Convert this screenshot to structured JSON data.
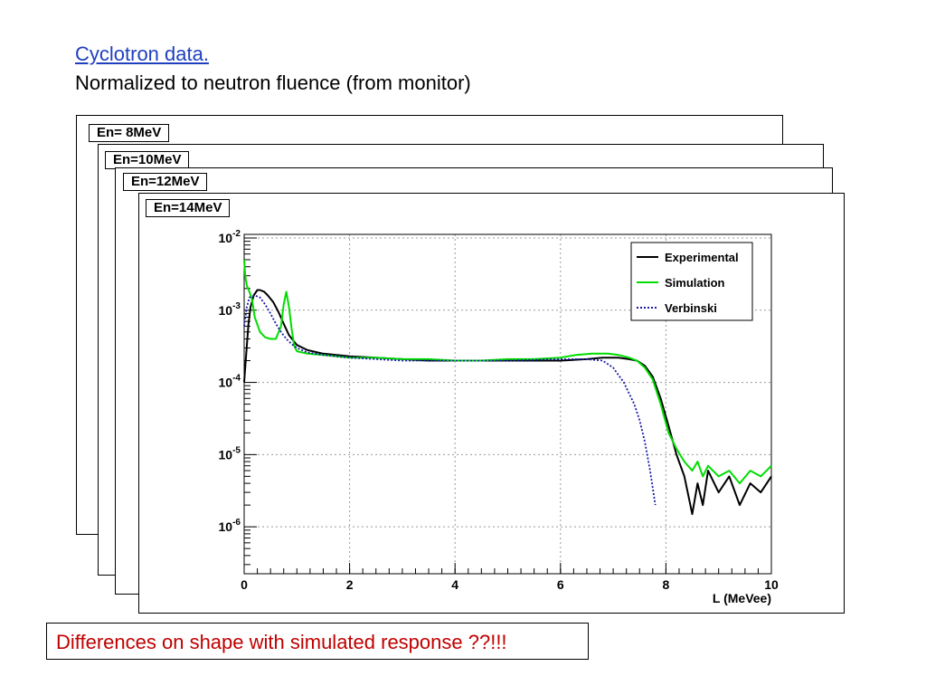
{
  "header": {
    "title_link": "Cyclotron data.",
    "subtitle": "Normalized to neutron fluence (from monitor)"
  },
  "pads": [
    {
      "label": "En= 8MeV"
    },
    {
      "label": "En=10MeV"
    },
    {
      "label": "En=12MeV"
    },
    {
      "label": "En=14MeV"
    }
  ],
  "note": "Differences on shape with simulated response ??!!!",
  "colors": {
    "experimental": "#000000",
    "simulation": "#00dd00",
    "verbinski": "#1a1aaa"
  },
  "chart_data": {
    "type": "line",
    "xlabel": "L (MeVee)",
    "ylabel": "",
    "xlim": [
      0,
      10
    ],
    "ylim_log10": [
      -6.65,
      -1.95
    ],
    "log_y": true,
    "grid": true,
    "legend_position": "top-right",
    "x_ticks": [
      "0",
      "2",
      "4",
      "6",
      "8",
      "10"
    ],
    "y_ticks": [
      {
        "exp": -2,
        "label": "10",
        "sup": "-2"
      },
      {
        "exp": -3,
        "label": "10",
        "sup": "-3"
      },
      {
        "exp": -4,
        "label": "10",
        "sup": "-4"
      },
      {
        "exp": -5,
        "label": "10",
        "sup": "-5"
      },
      {
        "exp": -6,
        "label": "10",
        "sup": "-6"
      }
    ],
    "series": [
      {
        "name": "Experimental",
        "style": "solid",
        "x": [
          0.0,
          0.04,
          0.08,
          0.12,
          0.18,
          0.25,
          0.3,
          0.38,
          0.45,
          0.55,
          0.65,
          0.75,
          0.85,
          1.0,
          1.2,
          1.5,
          2.0,
          2.5,
          3.0,
          3.5,
          4.0,
          4.5,
          5.0,
          5.5,
          6.0,
          6.5,
          6.8,
          7.1,
          7.3,
          7.45,
          7.6,
          7.75,
          7.9,
          8.05,
          8.2,
          8.35,
          8.5,
          8.6,
          8.7,
          8.8,
          9.0,
          9.2,
          9.4,
          9.6,
          9.8,
          10.0
        ],
        "y": [
          0.0001,
          0.00025,
          0.00063,
          0.0011,
          0.0016,
          0.0019,
          0.0019,
          0.0018,
          0.0016,
          0.0013,
          0.00095,
          0.00065,
          0.00045,
          0.00033,
          0.00028,
          0.00025,
          0.00023,
          0.00022,
          0.00021,
          0.0002,
          0.0002,
          0.0002,
          0.0002,
          0.0002,
          0.0002,
          0.00021,
          0.00022,
          0.00022,
          0.00021,
          0.0002,
          0.00017,
          0.00012,
          6e-05,
          2.5e-05,
          1e-05,
          5e-06,
          1.5e-06,
          4e-06,
          2e-06,
          6e-06,
          3e-06,
          5e-06,
          2e-06,
          4e-06,
          3e-06,
          5e-06
        ]
      },
      {
        "name": "Simulation",
        "style": "solid",
        "x": [
          0.0,
          0.02,
          0.05,
          0.1,
          0.15,
          0.2,
          0.3,
          0.4,
          0.5,
          0.6,
          0.7,
          0.75,
          0.8,
          0.85,
          0.9,
          0.95,
          1.0,
          1.2,
          1.5,
          2.0,
          2.5,
          3.0,
          3.5,
          4.0,
          4.5,
          5.0,
          5.5,
          6.0,
          6.3,
          6.6,
          6.9,
          7.1,
          7.3,
          7.45,
          7.6,
          7.75,
          7.9,
          8.05,
          8.2,
          8.35,
          8.5,
          8.6,
          8.7,
          8.8,
          9.0,
          9.2,
          9.4,
          9.6,
          9.8,
          10.0
        ],
        "y": [
          0.005,
          0.003,
          0.0022,
          0.0018,
          0.0014,
          0.0008,
          0.0005,
          0.00042,
          0.0004,
          0.0004,
          0.0006,
          0.0012,
          0.0018,
          0.0011,
          0.00055,
          0.00032,
          0.00027,
          0.00025,
          0.00024,
          0.00022,
          0.00022,
          0.00021,
          0.00021,
          0.0002,
          0.0002,
          0.00021,
          0.00021,
          0.00022,
          0.00024,
          0.00025,
          0.00025,
          0.00024,
          0.00022,
          0.0002,
          0.00016,
          0.00011,
          5e-05,
          2e-05,
          1.2e-05,
          8e-06,
          6e-06,
          8e-06,
          5e-06,
          7e-06,
          5e-06,
          6e-06,
          4e-06,
          6e-06,
          5e-06,
          7e-06
        ]
      },
      {
        "name": "Verbinski",
        "style": "dotted",
        "x": [
          0.0,
          0.05,
          0.1,
          0.2,
          0.3,
          0.4,
          0.5,
          0.6,
          0.7,
          0.8,
          0.9,
          1.0,
          1.2,
          1.5,
          2.0,
          3.0,
          4.0,
          5.0,
          6.0,
          6.5,
          6.8,
          7.0,
          7.2,
          7.4,
          7.5,
          7.6,
          7.7,
          7.8
        ],
        "y": [
          0.0006,
          0.0011,
          0.0015,
          0.0016,
          0.0015,
          0.0012,
          0.0009,
          0.00065,
          0.0005,
          0.0004,
          0.00034,
          0.0003,
          0.00026,
          0.00024,
          0.00022,
          0.0002,
          0.0002,
          0.0002,
          0.00021,
          0.00021,
          0.0002,
          0.00016,
          0.0001,
          5e-05,
          3e-05,
          1.5e-05,
          6e-06,
          2e-06
        ]
      }
    ]
  }
}
